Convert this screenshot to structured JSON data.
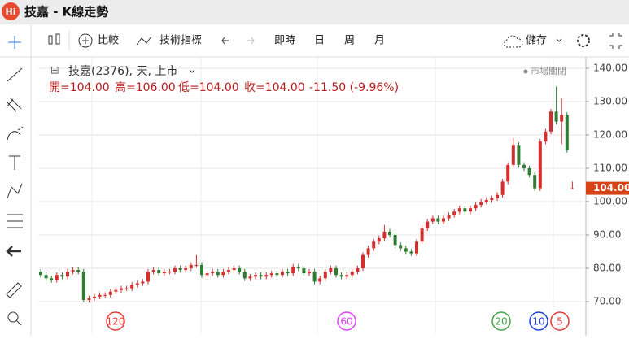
{
  "app": {
    "logo": "Hi",
    "title": "技嘉 - K線走勢",
    "toolbar": {
      "compare": "比較",
      "indicators": "技術指標",
      "realtime": "即時",
      "day": "日",
      "week": "周",
      "month": "月",
      "save": "儲存"
    }
  },
  "chart_data": {
    "type": "candlestick",
    "subtitle": "技嘉(2376), 天, 上市",
    "status": "市場關閉",
    "info": {
      "open": "開=104.00",
      "high": "高=106.00",
      "low": "低=104.00",
      "close": "收=104.00",
      "change": "-11.50 (-9.96%)"
    },
    "last_price_label": "104.00",
    "up_color": "#d32f2f",
    "down_color": "#2e7d32",
    "ylim": [
      60.5,
      143.4
    ],
    "yticks": [
      {
        "value": 140,
        "label": "140.00"
      },
      {
        "value": 130,
        "label": "130.00"
      },
      {
        "value": 120,
        "label": "120.00"
      },
      {
        "value": 110,
        "label": "110.00"
      },
      {
        "value": 100,
        "label": "100.00"
      },
      {
        "value": 90,
        "label": "90.00"
      },
      {
        "value": 80,
        "label": "80.00"
      },
      {
        "value": 70,
        "label": "70.00"
      }
    ],
    "grid": true,
    "ma_markers": [
      {
        "label": "120",
        "color": "#e53935"
      },
      {
        "label": "60",
        "color": "#e040fb"
      },
      {
        "label": "20",
        "color": "#43a047"
      },
      {
        "label": "10",
        "color": "#1e3fd6"
      },
      {
        "label": "5",
        "color": "#e53935"
      }
    ],
    "candles": [
      [
        79,
        79.8,
        77.2,
        78
      ],
      [
        78,
        78.8,
        76.2,
        77
      ],
      [
        77,
        77.8,
        75.7,
        76.5
      ],
      [
        76.5,
        78.8,
        75.7,
        78
      ],
      [
        78,
        78.8,
        76.7,
        77.5
      ],
      [
        77.5,
        79.8,
        76.7,
        79
      ],
      [
        79,
        80.3,
        78.2,
        79.5
      ],
      [
        79.5,
        80.3,
        78.2,
        79
      ],
      [
        79,
        79.8,
        69.7,
        70.5
      ],
      [
        70.5,
        71.8,
        69.7,
        71
      ],
      [
        71,
        72.3,
        70.2,
        71.5
      ],
      [
        71.5,
        72.8,
        70.7,
        72
      ],
      [
        72,
        72.8,
        71.2,
        72
      ],
      [
        72,
        73.8,
        71.2,
        73
      ],
      [
        73,
        74.3,
        72.2,
        73.5
      ],
      [
        73.5,
        74.8,
        72.7,
        74
      ],
      [
        74,
        74.8,
        73.2,
        74
      ],
      [
        74,
        75.8,
        73.2,
        75
      ],
      [
        75,
        76.3,
        74.2,
        75.5
      ],
      [
        75.5,
        76.8,
        74.7,
        76
      ],
      [
        76,
        79.8,
        75.2,
        79
      ],
      [
        79,
        80.3,
        78.2,
        79.5
      ],
      [
        79.5,
        80.3,
        77.7,
        78.5
      ],
      [
        78.5,
        79.8,
        77.7,
        79
      ],
      [
        79,
        79.8,
        78.2,
        79
      ],
      [
        79,
        80.8,
        78.2,
        80
      ],
      [
        80,
        80.8,
        78.7,
        79.5
      ],
      [
        79.5,
        80.8,
        78.7,
        80
      ],
      [
        80,
        81.8,
        79.2,
        81
      ],
      [
        81,
        84,
        80.2,
        81
      ],
      [
        81,
        81.8,
        77.2,
        78
      ],
      [
        78,
        79.3,
        77.2,
        78.5
      ],
      [
        78.5,
        79.8,
        77.7,
        79
      ],
      [
        79,
        79.8,
        77.2,
        78
      ],
      [
        78,
        79.8,
        77.2,
        79
      ],
      [
        79,
        80.3,
        78.2,
        79.5
      ],
      [
        79.5,
        80.8,
        78.7,
        80
      ],
      [
        80,
        80.8,
        78.2,
        79
      ],
      [
        79,
        79.8,
        76.2,
        77
      ],
      [
        77,
        78.3,
        76.2,
        77.5
      ],
      [
        77.5,
        78.8,
        76.7,
        78
      ],
      [
        78,
        78.8,
        76.7,
        77.5
      ],
      [
        77.5,
        78.8,
        76.7,
        78
      ],
      [
        78,
        79.3,
        77.2,
        78.5
      ],
      [
        78.5,
        79.3,
        77.2,
        78
      ],
      [
        78,
        79.8,
        77.2,
        79
      ],
      [
        79,
        79.8,
        77.7,
        78.5
      ],
      [
        78.5,
        81.3,
        77.7,
        80.5
      ],
      [
        80.5,
        81.3,
        79.2,
        80
      ],
      [
        80,
        80.8,
        77.7,
        78.5
      ],
      [
        78.5,
        79.8,
        77.7,
        79
      ],
      [
        79,
        79.8,
        75.2,
        76
      ],
      [
        76,
        77.8,
        75.2,
        77
      ],
      [
        77,
        79.8,
        76.2,
        79
      ],
      [
        79,
        80.8,
        78.2,
        80
      ],
      [
        80,
        80.8,
        77.2,
        78
      ],
      [
        78,
        78.8,
        76.7,
        77.5
      ],
      [
        77.5,
        78.8,
        76.7,
        78
      ],
      [
        78,
        79.8,
        77.2,
        79
      ],
      [
        79,
        80.8,
        78.2,
        80
      ],
      [
        80,
        84.8,
        79.2,
        84
      ],
      [
        84,
        86.8,
        83.2,
        86
      ],
      [
        86,
        88.8,
        85.2,
        88
      ],
      [
        88,
        89.8,
        87.2,
        89
      ],
      [
        89,
        93,
        88.2,
        91
      ],
      [
        91,
        91.8,
        89.2,
        90
      ],
      [
        90,
        90.8,
        86.2,
        87
      ],
      [
        87,
        87.8,
        85.2,
        86
      ],
      [
        86,
        86.8,
        84.2,
        85
      ],
      [
        85,
        85.8,
        83.7,
        84.5
      ],
      [
        84.5,
        88.8,
        83.7,
        88
      ],
      [
        88,
        92.8,
        87.2,
        92
      ],
      [
        92,
        94.8,
        91.2,
        94
      ],
      [
        94,
        95.8,
        93.2,
        95
      ],
      [
        95,
        95.8,
        93.2,
        94
      ],
      [
        94,
        95.8,
        93.2,
        95
      ],
      [
        95,
        96.8,
        94.2,
        96
      ],
      [
        96,
        97.8,
        95.2,
        97
      ],
      [
        97,
        98.8,
        96.2,
        98
      ],
      [
        98,
        98.8,
        96.2,
        97
      ],
      [
        97,
        98.8,
        96.2,
        98
      ],
      [
        98,
        99.8,
        97.2,
        99
      ],
      [
        99,
        100.8,
        98.2,
        100
      ],
      [
        100,
        101.3,
        99.2,
        100.5
      ],
      [
        100.5,
        101.8,
        99.7,
        101
      ],
      [
        101,
        102.8,
        100.2,
        102
      ],
      [
        102,
        106.8,
        101.2,
        106
      ],
      [
        106,
        111.8,
        105.2,
        111
      ],
      [
        111,
        119,
        110.2,
        117
      ],
      [
        117,
        117.8,
        110.2,
        111
      ],
      [
        111,
        111.8,
        109.2,
        110
      ],
      [
        110,
        110.8,
        107.2,
        108
      ],
      [
        108,
        108.8,
        103.2,
        104
      ],
      [
        104,
        118.8,
        103.2,
        118
      ],
      [
        118,
        121.8,
        117.2,
        121
      ],
      [
        121,
        127.8,
        120.2,
        127
      ],
      [
        127,
        134.5,
        123.2,
        124
      ],
      [
        124,
        131,
        117.2,
        126
      ],
      [
        126,
        126.8,
        114.7,
        115.5
      ],
      [
        104,
        106,
        104,
        104
      ]
    ]
  }
}
